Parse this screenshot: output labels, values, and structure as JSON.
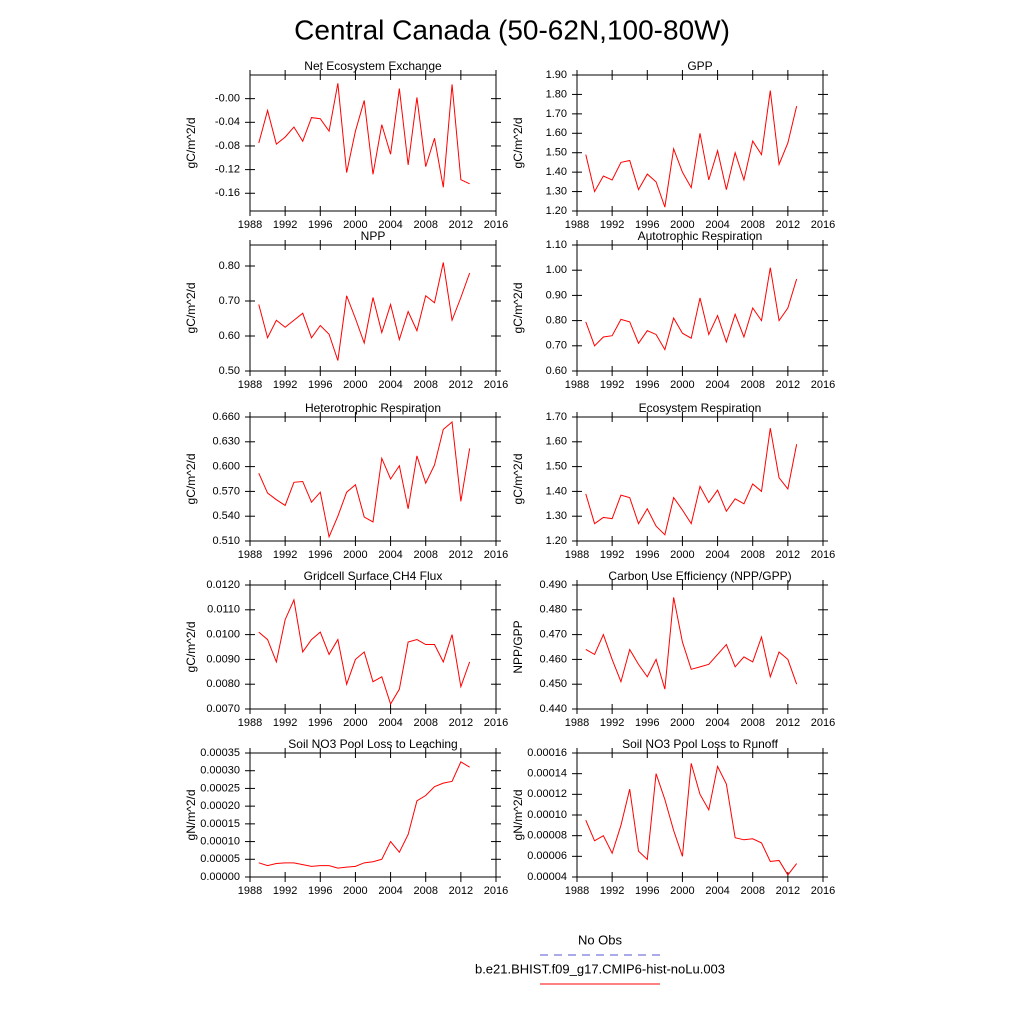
{
  "title": "Central Canada (50-62N,100-80W)",
  "legend": [
    {
      "name": "No Obs",
      "color": "#5555cc",
      "dash": true
    },
    {
      "name": "b.e21.BHIST.f09_g17.CMIP6-hist-noLu.003",
      "color": "#ff0000",
      "dash": false
    }
  ],
  "chart_data": [
    {
      "type": "line",
      "title": "Net Ecosystem Exchange",
      "y_label": "gC/m^2/d",
      "color": "#ff0000",
      "x": [
        1989,
        1990,
        1991,
        1992,
        1993,
        1994,
        1995,
        1996,
        1997,
        1998,
        1999,
        2000,
        2001,
        2002,
        2003,
        2004,
        2005,
        2006,
        2007,
        2008,
        2009,
        2010,
        2011,
        2012,
        2013
      ],
      "values": [
        -0.075,
        -0.02,
        -0.077,
        -0.065,
        -0.048,
        -0.072,
        -0.032,
        -0.034,
        -0.055,
        0.026,
        -0.125,
        -0.055,
        -0.003,
        -0.128,
        -0.044,
        -0.094,
        0.017,
        -0.112,
        0.002,
        -0.115,
        -0.067,
        -0.15,
        0.024,
        -0.137,
        -0.144
      ],
      "xlim": [
        1988,
        2016
      ],
      "xticks": [
        1988,
        1992,
        1996,
        2000,
        2004,
        2008,
        2012,
        2016
      ],
      "ylim": [
        -0.19,
        0.04
      ],
      "yticks": [
        {
          "value": 0,
          "label": "-0.00"
        },
        -0.04,
        -0.08,
        -0.12,
        -0.16
      ]
    },
    {
      "type": "line",
      "title": "GPP",
      "y_label": "gC/m^2/d",
      "color": "#ff0000",
      "x": [
        1989,
        1990,
        1991,
        1992,
        1993,
        1994,
        1995,
        1996,
        1997,
        1998,
        1999,
        2000,
        2001,
        2002,
        2003,
        2004,
        2005,
        2006,
        2007,
        2008,
        2009,
        2010,
        2011,
        2012,
        2013
      ],
      "values": [
        1.49,
        1.3,
        1.38,
        1.36,
        1.45,
        1.46,
        1.31,
        1.39,
        1.35,
        1.22,
        1.52,
        1.4,
        1.32,
        1.6,
        1.36,
        1.51,
        1.31,
        1.5,
        1.36,
        1.56,
        1.49,
        1.82,
        1.44,
        1.55,
        1.74
      ],
      "xlim": [
        1988,
        2016
      ],
      "xticks": [
        1988,
        1992,
        1996,
        2000,
        2004,
        2008,
        2012,
        2016
      ],
      "ylim": [
        1.2,
        1.9
      ],
      "yticks": [
        {
          "value": 1.2,
          "label": "1.20"
        },
        {
          "value": 1.3,
          "label": "1.30"
        },
        {
          "value": 1.4,
          "label": "1.40"
        },
        {
          "value": 1.5,
          "label": "1.50"
        },
        {
          "value": 1.6,
          "label": "1.60"
        },
        {
          "value": 1.7,
          "label": "1.70"
        },
        {
          "value": 1.8,
          "label": "1.80"
        },
        {
          "value": 1.9,
          "label": "1.90"
        }
      ]
    },
    {
      "type": "line",
      "title": "NPP",
      "y_label": "gC/m^2/d",
      "color": "#ff0000",
      "x": [
        1989,
        1990,
        1991,
        1992,
        1993,
        1994,
        1995,
        1996,
        1997,
        1998,
        1999,
        2000,
        2001,
        2002,
        2003,
        2004,
        2005,
        2006,
        2007,
        2008,
        2009,
        2010,
        2011,
        2012,
        2013
      ],
      "values": [
        0.69,
        0.595,
        0.645,
        0.625,
        0.645,
        0.665,
        0.595,
        0.63,
        0.605,
        0.53,
        0.715,
        0.65,
        0.58,
        0.71,
        0.61,
        0.69,
        0.59,
        0.67,
        0.615,
        0.715,
        0.695,
        0.81,
        0.645,
        0.71,
        0.78
      ],
      "xlim": [
        1988,
        2016
      ],
      "xticks": [
        1988,
        1992,
        1996,
        2000,
        2004,
        2008,
        2012,
        2016
      ],
      "ylim": [
        0.5,
        0.86
      ],
      "yticks": [
        {
          "value": 0.5,
          "label": "0.50"
        },
        {
          "value": 0.6,
          "label": "0.60"
        },
        {
          "value": 0.7,
          "label": "0.70"
        },
        {
          "value": 0.8,
          "label": "0.80"
        }
      ]
    },
    {
      "type": "line",
      "title": "Autotrophic Respiration",
      "y_label": "gC/m^2/d",
      "color": "#ff0000",
      "x": [
        1989,
        1990,
        1991,
        1992,
        1993,
        1994,
        1995,
        1996,
        1997,
        1998,
        1999,
        2000,
        2001,
        2002,
        2003,
        2004,
        2005,
        2006,
        2007,
        2008,
        2009,
        2010,
        2011,
        2012,
        2013
      ],
      "values": [
        0.795,
        0.7,
        0.735,
        0.74,
        0.805,
        0.795,
        0.71,
        0.76,
        0.745,
        0.685,
        0.81,
        0.75,
        0.73,
        0.89,
        0.745,
        0.82,
        0.715,
        0.825,
        0.735,
        0.85,
        0.8,
        1.01,
        0.8,
        0.85,
        0.965
      ],
      "xlim": [
        1988,
        2016
      ],
      "xticks": [
        1988,
        1992,
        1996,
        2000,
        2004,
        2008,
        2012,
        2016
      ],
      "ylim": [
        0.6,
        1.1
      ],
      "yticks": [
        {
          "value": 0.6,
          "label": "0.60"
        },
        {
          "value": 0.7,
          "label": "0.70"
        },
        {
          "value": 0.8,
          "label": "0.80"
        },
        {
          "value": 0.9,
          "label": "0.90"
        },
        {
          "value": 1.0,
          "label": "1.00"
        },
        {
          "value": 1.1,
          "label": "1.10"
        }
      ]
    },
    {
      "type": "line",
      "title": "Heterotrophic Respiration",
      "y_label": "gC/m^2/d",
      "color": "#ff0000",
      "x": [
        1989,
        1990,
        1991,
        1992,
        1993,
        1994,
        1995,
        1996,
        1997,
        1998,
        1999,
        2000,
        2001,
        2002,
        2003,
        2004,
        2005,
        2006,
        2007,
        2008,
        2009,
        2010,
        2011,
        2012,
        2013
      ],
      "values": [
        0.592,
        0.568,
        0.56,
        0.553,
        0.581,
        0.582,
        0.557,
        0.569,
        0.515,
        0.54,
        0.569,
        0.578,
        0.539,
        0.533,
        0.61,
        0.585,
        0.601,
        0.549,
        0.613,
        0.58,
        0.602,
        0.645,
        0.654,
        0.558,
        0.622
      ],
      "xlim": [
        1988,
        2016
      ],
      "xticks": [
        1988,
        1992,
        1996,
        2000,
        2004,
        2008,
        2012,
        2016
      ],
      "ylim": [
        0.51,
        0.66
      ],
      "yticks": [
        {
          "value": 0.51,
          "label": "0.510"
        },
        {
          "value": 0.54,
          "label": "0.540"
        },
        {
          "value": 0.57,
          "label": "0.570"
        },
        {
          "value": 0.6,
          "label": "0.600"
        },
        {
          "value": 0.63,
          "label": "0.630"
        },
        {
          "value": 0.66,
          "label": "0.660"
        }
      ]
    },
    {
      "type": "line",
      "title": "Ecosystem Respiration",
      "y_label": "gC/m^2/d",
      "color": "#ff0000",
      "x": [
        1989,
        1990,
        1991,
        1992,
        1993,
        1994,
        1995,
        1996,
        1997,
        1998,
        1999,
        2000,
        2001,
        2002,
        2003,
        2004,
        2005,
        2006,
        2007,
        2008,
        2009,
        2010,
        2011,
        2012,
        2013
      ],
      "values": [
        1.39,
        1.27,
        1.295,
        1.29,
        1.385,
        1.375,
        1.27,
        1.33,
        1.26,
        1.225,
        1.375,
        1.325,
        1.27,
        1.42,
        1.355,
        1.405,
        1.32,
        1.37,
        1.35,
        1.43,
        1.4,
        1.655,
        1.455,
        1.41,
        1.59
      ],
      "xlim": [
        1988,
        2016
      ],
      "xticks": [
        1988,
        1992,
        1996,
        2000,
        2004,
        2008,
        2012,
        2016
      ],
      "ylim": [
        1.2,
        1.7
      ],
      "yticks": [
        {
          "value": 1.2,
          "label": "1.20"
        },
        {
          "value": 1.3,
          "label": "1.30"
        },
        {
          "value": 1.4,
          "label": "1.40"
        },
        {
          "value": 1.5,
          "label": "1.50"
        },
        {
          "value": 1.6,
          "label": "1.60"
        },
        {
          "value": 1.7,
          "label": "1.70"
        }
      ]
    },
    {
      "type": "line",
      "title": "Gridcell Surface CH4 Flux",
      "y_label": "gC/m^2/d",
      "color": "#ff0000",
      "x": [
        1989,
        1990,
        1991,
        1992,
        1993,
        1994,
        1995,
        1996,
        1997,
        1998,
        1999,
        2000,
        2001,
        2002,
        2003,
        2004,
        2005,
        2006,
        2007,
        2008,
        2009,
        2010,
        2011,
        2012,
        2013
      ],
      "values": [
        0.0101,
        0.0098,
        0.0089,
        0.0106,
        0.0114,
        0.0093,
        0.0098,
        0.0101,
        0.0092,
        0.0098,
        0.008,
        0.009,
        0.0093,
        0.0081,
        0.0083,
        0.0072,
        0.0078,
        0.0097,
        0.0098,
        0.0096,
        0.0096,
        0.0089,
        0.01,
        0.0079,
        0.0089
      ],
      "xlim": [
        1988,
        2016
      ],
      "xticks": [
        1988,
        1992,
        1996,
        2000,
        2004,
        2008,
        2012,
        2016
      ],
      "ylim": [
        0.007,
        0.012
      ],
      "yticks": [
        {
          "value": 0.007,
          "label": "0.0070"
        },
        {
          "value": 0.008,
          "label": "0.0080"
        },
        {
          "value": 0.009,
          "label": "0.0090"
        },
        {
          "value": 0.01,
          "label": "0.0100"
        },
        {
          "value": 0.011,
          "label": "0.0110"
        },
        {
          "value": 0.012,
          "label": "0.0120"
        }
      ]
    },
    {
      "type": "line",
      "title": "Carbon Use Efficiency (NPP/GPP)",
      "y_label": "NPP/GPP",
      "color": "#ff0000",
      "x": [
        1989,
        1990,
        1991,
        1992,
        1993,
        1994,
        1995,
        1996,
        1997,
        1998,
        1999,
        2000,
        2001,
        2002,
        2003,
        2004,
        2005,
        2006,
        2007,
        2008,
        2009,
        2010,
        2011,
        2012,
        2013
      ],
      "values": [
        0.464,
        0.462,
        0.47,
        0.46,
        0.451,
        0.464,
        0.458,
        0.453,
        0.46,
        0.448,
        0.485,
        0.467,
        0.456,
        0.457,
        0.458,
        0.462,
        0.466,
        0.457,
        0.461,
        0.459,
        0.469,
        0.453,
        0.463,
        0.46,
        0.45
      ],
      "xlim": [
        1988,
        2016
      ],
      "xticks": [
        1988,
        1992,
        1996,
        2000,
        2004,
        2008,
        2012,
        2016
      ],
      "ylim": [
        0.44,
        0.49
      ],
      "yticks": [
        {
          "value": 0.44,
          "label": "0.440"
        },
        {
          "value": 0.45,
          "label": "0.450"
        },
        {
          "value": 0.46,
          "label": "0.460"
        },
        {
          "value": 0.47,
          "label": "0.470"
        },
        {
          "value": 0.48,
          "label": "0.480"
        },
        {
          "value": 0.49,
          "label": "0.490"
        }
      ]
    },
    {
      "type": "line",
      "title": "Soil NO3 Pool Loss to Leaching",
      "y_label": "gN/m^2/d",
      "color": "#ff0000",
      "x": [
        1989,
        1990,
        1991,
        1992,
        1993,
        1994,
        1995,
        1996,
        1997,
        1998,
        1999,
        2000,
        2001,
        2002,
        2003,
        2004,
        2005,
        2006,
        2007,
        2008,
        2009,
        2010,
        2011,
        2012,
        2013
      ],
      "values": [
        4e-05,
        3.2e-05,
        3.8e-05,
        4e-05,
        4e-05,
        3.5e-05,
        3e-05,
        3.2e-05,
        3.2e-05,
        2.5e-05,
        2.8e-05,
        3e-05,
        4e-05,
        4.3e-05,
        5e-05,
        0.0001,
        7e-05,
        0.00012,
        0.000215,
        0.00023,
        0.000255,
        0.000265,
        0.00027,
        0.000325,
        0.00031
      ],
      "xlim": [
        1988,
        2016
      ],
      "xticks": [
        1988,
        1992,
        1996,
        2000,
        2004,
        2008,
        2012,
        2016
      ],
      "ylim": [
        0,
        0.00035
      ],
      "yticks": [
        {
          "value": 0,
          "label": "0.00000"
        },
        {
          "value": 5e-05,
          "label": "0.00005"
        },
        {
          "value": 0.0001,
          "label": "0.00010"
        },
        {
          "value": 0.00015,
          "label": "0.00015"
        },
        {
          "value": 0.0002,
          "label": "0.00020"
        },
        {
          "value": 0.00025,
          "label": "0.00025"
        },
        {
          "value": 0.0003,
          "label": "0.00030"
        },
        {
          "value": 0.00035,
          "label": "0.00035"
        }
      ]
    },
    {
      "type": "line",
      "title": "Soil NO3 Pool Loss to Runoff",
      "y_label": "gN/m^2/d",
      "color": "#ff0000",
      "x": [
        1989,
        1990,
        1991,
        1992,
        1993,
        1994,
        1995,
        1996,
        1997,
        1998,
        1999,
        2000,
        2001,
        2002,
        2003,
        2004,
        2005,
        2006,
        2007,
        2008,
        2009,
        2010,
        2011,
        2012,
        2013
      ],
      "values": [
        9.5e-05,
        7.5e-05,
        8e-05,
        6.3e-05,
        9e-05,
        0.000125,
        6.5e-05,
        5.7e-05,
        0.00014,
        0.000115,
        8.5e-05,
        6e-05,
        0.00015,
        0.00012,
        0.000105,
        0.000147,
        0.00013,
        7.8e-05,
        7.6e-05,
        7.7e-05,
        7.3e-05,
        5.5e-05,
        5.6e-05,
        4.2e-05,
        5.3e-05
      ],
      "xlim": [
        1988,
        2016
      ],
      "xticks": [
        1988,
        1992,
        1996,
        2000,
        2004,
        2008,
        2012,
        2016
      ],
      "ylim": [
        4e-05,
        0.00016
      ],
      "yticks": [
        {
          "value": 4e-05,
          "label": "0.00004"
        },
        {
          "value": 6e-05,
          "label": "0.00006"
        },
        {
          "value": 8e-05,
          "label": "0.00008"
        },
        {
          "value": 0.0001,
          "label": "0.00010"
        },
        {
          "value": 0.00012,
          "label": "0.00012"
        },
        {
          "value": 0.00014,
          "label": "0.00014"
        },
        {
          "value": 0.00016,
          "label": "0.00016"
        }
      ]
    }
  ]
}
